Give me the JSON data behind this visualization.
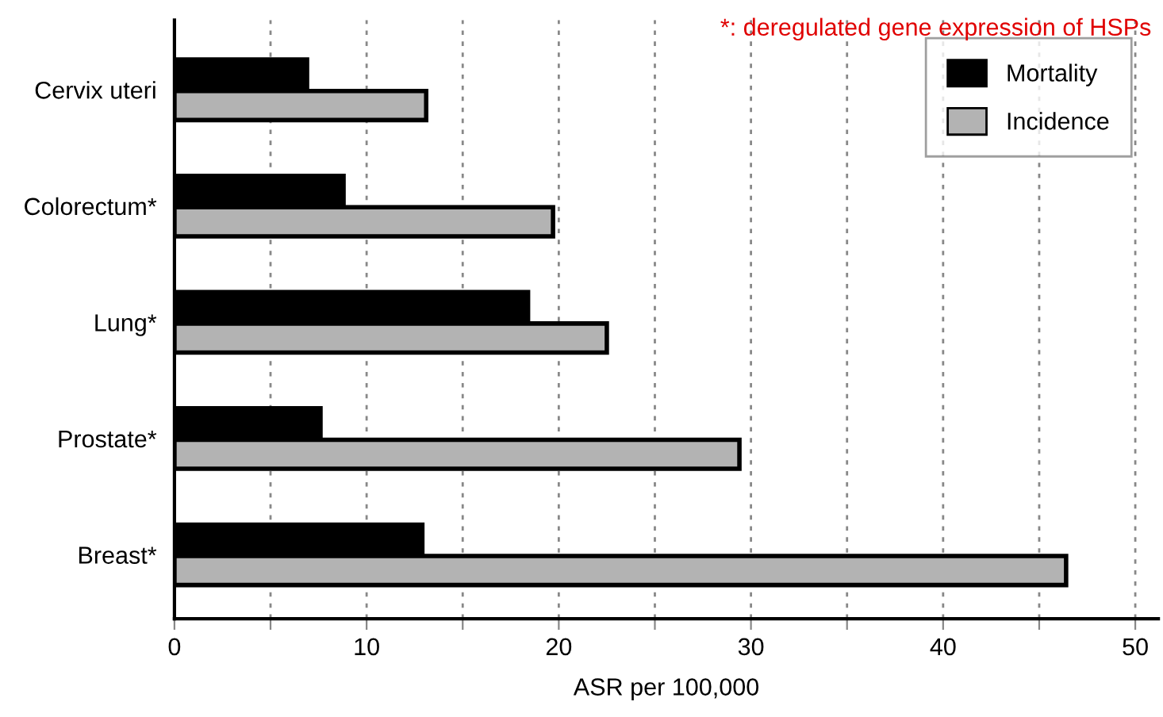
{
  "chart_data": {
    "type": "bar",
    "orientation": "horizontal",
    "categories": [
      "Cervix uteri",
      "Colorectum*",
      "Lung*",
      "Prostate*",
      "Breast*"
    ],
    "series": [
      {
        "name": "Mortality",
        "color": "#000000",
        "values": [
          6.9,
          8.8,
          18.4,
          7.6,
          12.9
        ]
      },
      {
        "name": "Incidence",
        "color": "#b3b3b3",
        "values": [
          13.1,
          19.7,
          22.5,
          29.4,
          46.4
        ]
      }
    ],
    "xlabel": "ASR per 100,000",
    "xlim": [
      0,
      51.2
    ],
    "xticks": [
      0,
      {
        "value": 5,
        "label": null
      },
      10,
      {
        "value": 15,
        "label": null
      },
      20,
      {
        "value": 25,
        "label": null
      },
      30,
      {
        "value": 35,
        "label": null
      },
      40,
      {
        "value": 45,
        "label": null
      },
      50
    ],
    "grid": "x",
    "legend": "top right",
    "annotations": [
      "*: deregulated gene expression of HSPs"
    ]
  }
}
